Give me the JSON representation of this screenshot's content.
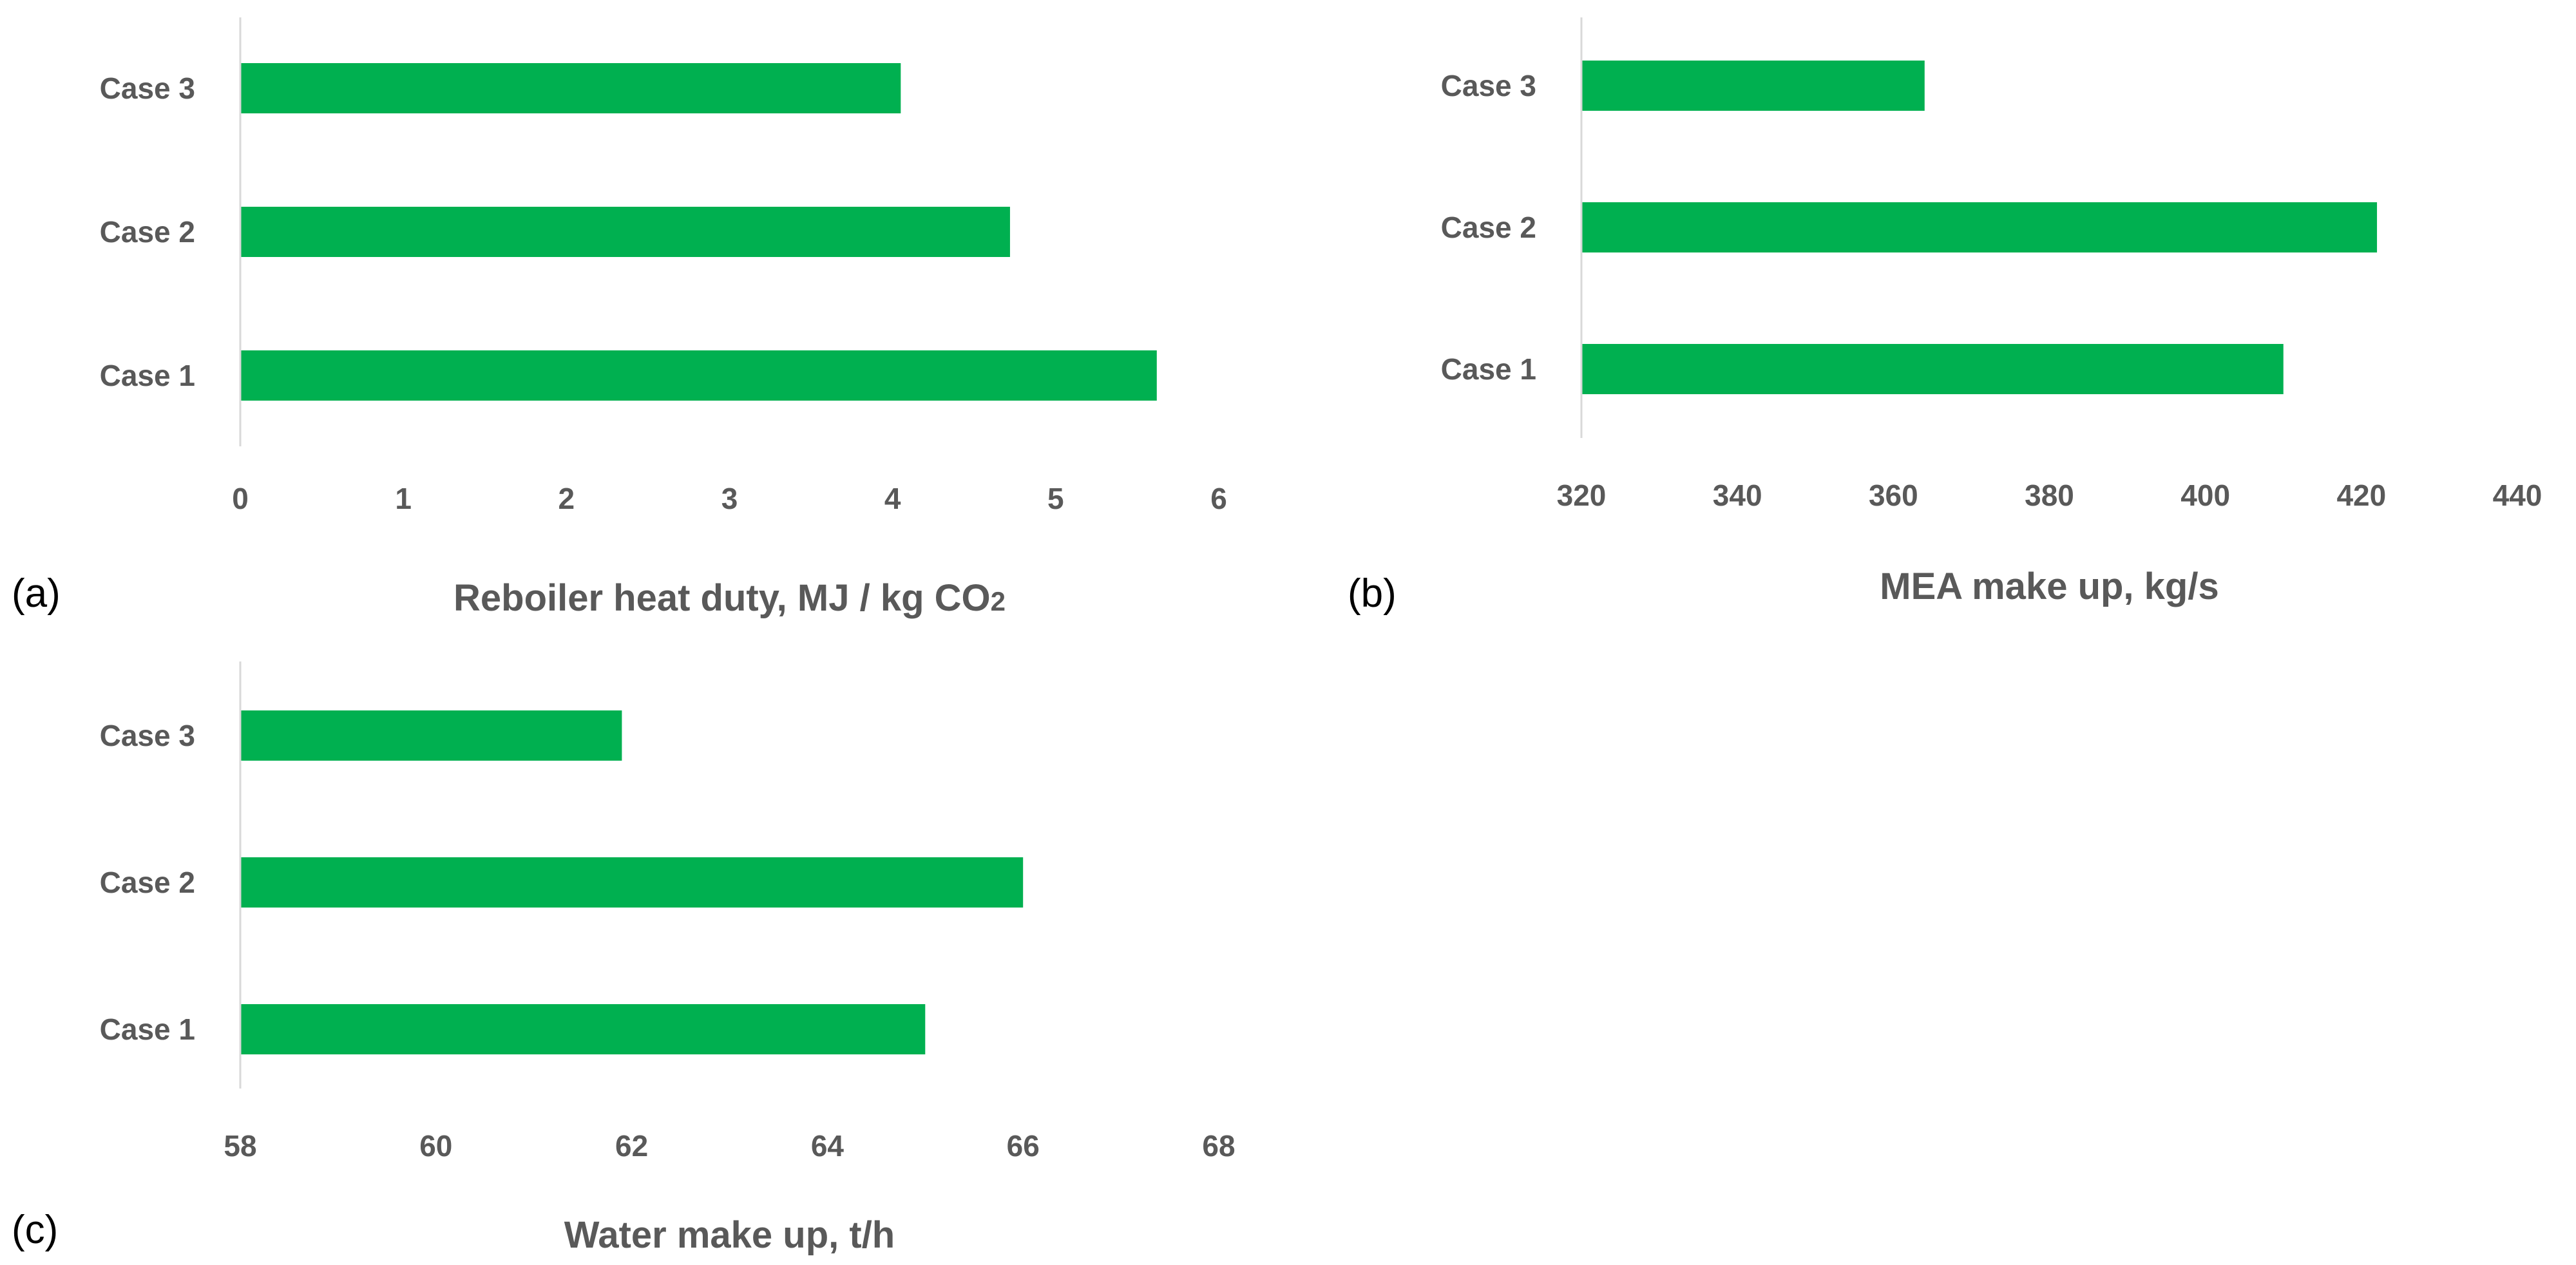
{
  "colors": {
    "bar": "#00b050",
    "axis": "#d9d9d9",
    "text": "#595959"
  },
  "chart_data": [
    {
      "type": "bar",
      "orientation": "horizontal",
      "panel": "(a)",
      "categories": [
        "Case 3",
        "Case 2",
        "Case 1"
      ],
      "values": [
        4.05,
        4.72,
        5.62
      ],
      "xlabel": "Reboiler heat duty, MJ / kg CO",
      "xlabel_sub": "2",
      "xlim": [
        0,
        6
      ],
      "xticks": [
        "0",
        "1",
        "2",
        "3",
        "4",
        "5",
        "6"
      ],
      "grid": false,
      "legend": "none"
    },
    {
      "type": "bar",
      "orientation": "horizontal",
      "panel": "(b)",
      "categories": [
        "Case 3",
        "Case 2",
        "Case 1"
      ],
      "values": [
        364,
        422,
        410
      ],
      "xlabel": "MEA make up, kg/s",
      "xlim": [
        320,
        440
      ],
      "xticks": [
        "320",
        "340",
        "360",
        "380",
        "400",
        "420",
        "440"
      ],
      "grid": false,
      "legend": "none"
    },
    {
      "type": "bar",
      "orientation": "horizontal",
      "panel": "(c)",
      "categories": [
        "Case 3",
        "Case 2",
        "Case 1"
      ],
      "values": [
        61.9,
        66.0,
        65.0
      ],
      "xlabel": "Water make up, t/h",
      "xlim": [
        58,
        68
      ],
      "xticks": [
        "58",
        "60",
        "62",
        "64",
        "66",
        "68"
      ],
      "grid": false,
      "legend": "none"
    }
  ]
}
